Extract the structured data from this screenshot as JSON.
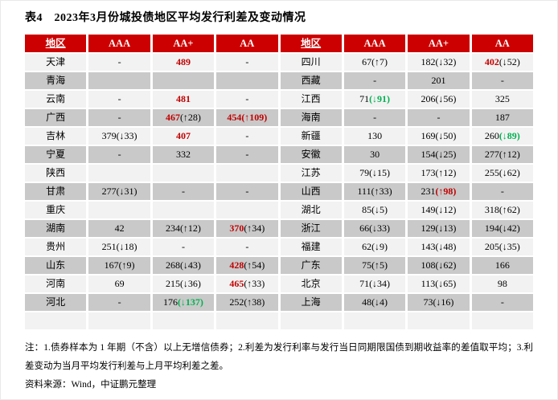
{
  "title": "表4　2023年3月份城投债地区平均发行利差及变动情况",
  "colors": {
    "header_bg": "#CC0000",
    "header_text": "#FFFFFF",
    "red": "#C00000",
    "green": "#00B050",
    "black": "#000000",
    "row_light": "#F2F2F2",
    "row_dark": "#C9C9C9"
  },
  "table": {
    "headers": [
      {
        "label": "地区",
        "underline": true
      },
      {
        "label": "AAA",
        "underline": false
      },
      {
        "label": "AA+",
        "underline": false
      },
      {
        "label": "AA",
        "underline": false
      },
      {
        "label": "地区",
        "underline": true
      },
      {
        "label": "AAA",
        "underline": false
      },
      {
        "label": "AA+",
        "underline": false
      },
      {
        "label": "AA",
        "underline": false
      }
    ],
    "rows": [
      [
        [
          {
            "t": "天津",
            "c": "k"
          }
        ],
        [
          {
            "t": "-",
            "c": "k"
          }
        ],
        [
          {
            "t": "489",
            "c": "r"
          }
        ],
        [
          {
            "t": "-",
            "c": "k"
          }
        ],
        [
          {
            "t": "四川",
            "c": "k"
          }
        ],
        [
          {
            "t": "67(↑7)",
            "c": "k"
          }
        ],
        [
          {
            "t": "182(↓32)",
            "c": "k"
          }
        ],
        [
          {
            "t": "402",
            "c": "r"
          },
          {
            "t": "(↓52)",
            "c": "k"
          }
        ]
      ],
      [
        [
          {
            "t": "青海",
            "c": "k"
          }
        ],
        [],
        [],
        [],
        [
          {
            "t": "西藏",
            "c": "k"
          }
        ],
        [
          {
            "t": "-",
            "c": "k"
          }
        ],
        [
          {
            "t": "201",
            "c": "k"
          }
        ],
        [
          {
            "t": "-",
            "c": "k"
          }
        ]
      ],
      [
        [
          {
            "t": "云南",
            "c": "k"
          }
        ],
        [
          {
            "t": "-",
            "c": "k"
          }
        ],
        [
          {
            "t": "481",
            "c": "r"
          }
        ],
        [
          {
            "t": "-",
            "c": "k"
          }
        ],
        [
          {
            "t": "江西",
            "c": "k"
          }
        ],
        [
          {
            "t": "71",
            "c": "k"
          },
          {
            "t": "(↓91)",
            "c": "g"
          }
        ],
        [
          {
            "t": "206(↓56)",
            "c": "k"
          }
        ],
        [
          {
            "t": "325",
            "c": "k"
          }
        ]
      ],
      [
        [
          {
            "t": "广西",
            "c": "k"
          }
        ],
        [
          {
            "t": "-",
            "c": "k"
          }
        ],
        [
          {
            "t": "467",
            "c": "r"
          },
          {
            "t": "(↑28)",
            "c": "k"
          }
        ],
        [
          {
            "t": "454(↑109)",
            "c": "r"
          }
        ],
        [
          {
            "t": "海南",
            "c": "k"
          }
        ],
        [
          {
            "t": "-",
            "c": "k"
          }
        ],
        [
          {
            "t": "-",
            "c": "k"
          }
        ],
        [
          {
            "t": "187",
            "c": "k"
          }
        ]
      ],
      [
        [
          {
            "t": "吉林",
            "c": "k"
          }
        ],
        [
          {
            "t": "379(↓33)",
            "c": "k"
          }
        ],
        [
          {
            "t": "407",
            "c": "r"
          }
        ],
        [
          {
            "t": "-",
            "c": "k"
          }
        ],
        [
          {
            "t": "新疆",
            "c": "k"
          }
        ],
        [
          {
            "t": "130",
            "c": "k"
          }
        ],
        [
          {
            "t": "169(↓50)",
            "c": "k"
          }
        ],
        [
          {
            "t": "260",
            "c": "k"
          },
          {
            "t": "(↓89)",
            "c": "g"
          }
        ]
      ],
      [
        [
          {
            "t": "宁夏",
            "c": "k"
          }
        ],
        [
          {
            "t": "-",
            "c": "k"
          }
        ],
        [
          {
            "t": "332",
            "c": "k"
          }
        ],
        [
          {
            "t": "-",
            "c": "k"
          }
        ],
        [
          {
            "t": "安徽",
            "c": "k"
          }
        ],
        [
          {
            "t": "30",
            "c": "k"
          }
        ],
        [
          {
            "t": "154(↓25)",
            "c": "k"
          }
        ],
        [
          {
            "t": "277(↑12)",
            "c": "k"
          }
        ]
      ],
      [
        [
          {
            "t": "陕西",
            "c": "k"
          }
        ],
        [],
        [],
        [],
        [
          {
            "t": "江苏",
            "c": "k"
          }
        ],
        [
          {
            "t": "79(↓15)",
            "c": "k"
          }
        ],
        [
          {
            "t": "173(↑12)",
            "c": "k"
          }
        ],
        [
          {
            "t": "255(↓62)",
            "c": "k"
          }
        ]
      ],
      [
        [
          {
            "t": "甘肃",
            "c": "k"
          }
        ],
        [
          {
            "t": "277(↓31)",
            "c": "k"
          }
        ],
        [
          {
            "t": "-",
            "c": "k"
          }
        ],
        [
          {
            "t": "-",
            "c": "k"
          }
        ],
        [
          {
            "t": "山西",
            "c": "k"
          }
        ],
        [
          {
            "t": "111(↑33)",
            "c": "k"
          }
        ],
        [
          {
            "t": "231",
            "c": "k"
          },
          {
            "t": "(↑98)",
            "c": "r"
          }
        ],
        [
          {
            "t": "-",
            "c": "k"
          }
        ]
      ],
      [
        [
          {
            "t": "重庆",
            "c": "k"
          }
        ],
        [],
        [],
        [],
        [
          {
            "t": "湖北",
            "c": "k"
          }
        ],
        [
          {
            "t": "85(↓5)",
            "c": "k"
          }
        ],
        [
          {
            "t": "149(↓12)",
            "c": "k"
          }
        ],
        [
          {
            "t": "318(↑62)",
            "c": "k"
          }
        ]
      ],
      [
        [
          {
            "t": "湖南",
            "c": "k"
          }
        ],
        [
          {
            "t": "42",
            "c": "k"
          }
        ],
        [
          {
            "t": "234(↑12)",
            "c": "k"
          }
        ],
        [
          {
            "t": "370",
            "c": "r"
          },
          {
            "t": "(↑34)",
            "c": "k"
          }
        ],
        [
          {
            "t": "浙江",
            "c": "k"
          }
        ],
        [
          {
            "t": "66(↓33)",
            "c": "k"
          }
        ],
        [
          {
            "t": "129(↓13)",
            "c": "k"
          }
        ],
        [
          {
            "t": "194(↓42)",
            "c": "k"
          }
        ]
      ],
      [
        [
          {
            "t": "贵州",
            "c": "k"
          }
        ],
        [
          {
            "t": "251(↓18)",
            "c": "k"
          }
        ],
        [
          {
            "t": "-",
            "c": "k"
          }
        ],
        [
          {
            "t": "-",
            "c": "k"
          }
        ],
        [
          {
            "t": "福建",
            "c": "k"
          }
        ],
        [
          {
            "t": "62(↓9)",
            "c": "k"
          }
        ],
        [
          {
            "t": "143(↓48)",
            "c": "k"
          }
        ],
        [
          {
            "t": "205(↓35)",
            "c": "k"
          }
        ]
      ],
      [
        [
          {
            "t": "山东",
            "c": "k"
          }
        ],
        [
          {
            "t": "167(↑9)",
            "c": "k"
          }
        ],
        [
          {
            "t": "268(↓43)",
            "c": "k"
          }
        ],
        [
          {
            "t": "428",
            "c": "r"
          },
          {
            "t": "(↑54)",
            "c": "k"
          }
        ],
        [
          {
            "t": "广东",
            "c": "k"
          }
        ],
        [
          {
            "t": "75(↑5)",
            "c": "k"
          }
        ],
        [
          {
            "t": "108(↓62)",
            "c": "k"
          }
        ],
        [
          {
            "t": "166",
            "c": "k"
          }
        ]
      ],
      [
        [
          {
            "t": "河南",
            "c": "k"
          }
        ],
        [
          {
            "t": "69",
            "c": "k"
          }
        ],
        [
          {
            "t": "215(↓36)",
            "c": "k"
          }
        ],
        [
          {
            "t": "465",
            "c": "r"
          },
          {
            "t": "(↑33)",
            "c": "k"
          }
        ],
        [
          {
            "t": "北京",
            "c": "k"
          }
        ],
        [
          {
            "t": "71(↓34)",
            "c": "k"
          }
        ],
        [
          {
            "t": "113(↓65)",
            "c": "k"
          }
        ],
        [
          {
            "t": "98",
            "c": "k"
          }
        ]
      ],
      [
        [
          {
            "t": "河北",
            "c": "k"
          }
        ],
        [
          {
            "t": "-",
            "c": "k"
          }
        ],
        [
          {
            "t": "176",
            "c": "k"
          },
          {
            "t": "(↓137)",
            "c": "g"
          }
        ],
        [
          {
            "t": "252(↑38)",
            "c": "k"
          }
        ],
        [
          {
            "t": "上海",
            "c": "k"
          }
        ],
        [
          {
            "t": "48(↓4)",
            "c": "k"
          }
        ],
        [
          {
            "t": "73(↓16)",
            "c": "k"
          }
        ],
        [
          {
            "t": "-",
            "c": "k"
          }
        ]
      ],
      [
        [],
        [],
        [],
        [],
        [],
        [],
        [],
        []
      ]
    ]
  },
  "notes": "注：1.债券样本为 1 年期（不含）以上无增信债券；2.利差为发行利率与发行当日同期限国债到期收益率的差值取平均；3.利差变动为当月平均发行利差与上月平均利差之差。",
  "source": "资料来源：Wind，中证鹏元整理"
}
